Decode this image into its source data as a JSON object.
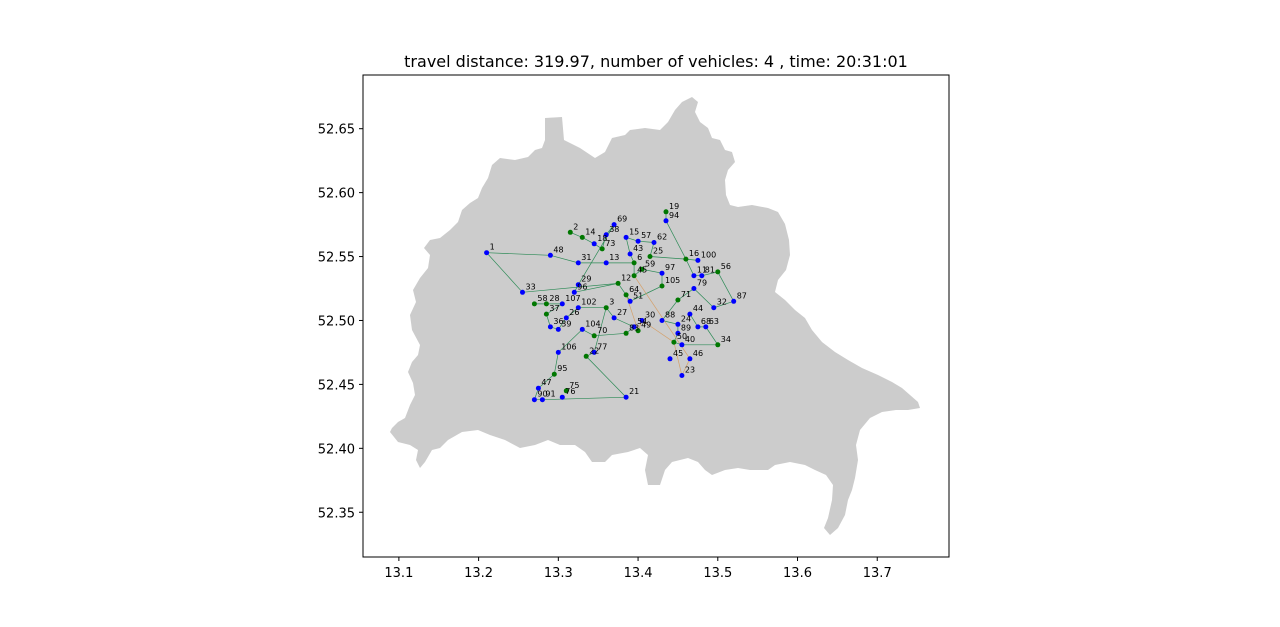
{
  "chart_data": {
    "type": "scatter",
    "title": "travel distance: 319.97, number of vehicles: 4 , time: 20:31:01",
    "xlabel": "",
    "ylabel": "",
    "xlim": [
      13.055,
      13.79
    ],
    "ylim": [
      52.315,
      52.692
    ],
    "xticks": [
      13.1,
      13.2,
      13.3,
      13.4,
      13.5,
      13.6,
      13.7
    ],
    "yticks": [
      52.35,
      52.4,
      52.45,
      52.5,
      52.55,
      52.6,
      52.65
    ],
    "xtick_labels": [
      "13.1",
      "13.2",
      "13.3",
      "13.4",
      "13.5",
      "13.6",
      "13.7"
    ],
    "ytick_labels": [
      "52.35",
      "52.40",
      "52.45",
      "52.50",
      "52.55",
      "52.60",
      "52.65"
    ],
    "grid": false,
    "background_map": "Berlin",
    "colors": {
      "map_fill": "#cccccc",
      "pickup": "#0000ff",
      "delivery": "#007700",
      "route": "#2e8b57",
      "route_alt": "#d4a06a"
    },
    "points": [
      {
        "label": "1",
        "x": 13.21,
        "y": 52.553,
        "kind": "pickup"
      },
      {
        "label": "48",
        "x": 13.29,
        "y": 52.551,
        "kind": "pickup"
      },
      {
        "label": "33",
        "x": 13.255,
        "y": 52.522,
        "kind": "pickup"
      },
      {
        "label": "58",
        "x": 13.27,
        "y": 52.513,
        "kind": "delivery"
      },
      {
        "label": "28",
        "x": 13.285,
        "y": 52.513,
        "kind": "delivery"
      },
      {
        "label": "107",
        "x": 13.305,
        "y": 52.513,
        "kind": "pickup"
      },
      {
        "label": "37",
        "x": 13.285,
        "y": 52.505,
        "kind": "delivery"
      },
      {
        "label": "36",
        "x": 13.29,
        "y": 52.495,
        "kind": "pickup"
      },
      {
        "label": "39",
        "x": 13.3,
        "y": 52.493,
        "kind": "pickup"
      },
      {
        "label": "26",
        "x": 13.31,
        "y": 52.502,
        "kind": "pickup"
      },
      {
        "label": "102",
        "x": 13.325,
        "y": 52.51,
        "kind": "pickup"
      },
      {
        "label": "104",
        "x": 13.33,
        "y": 52.493,
        "kind": "pickup"
      },
      {
        "label": "3",
        "x": 13.36,
        "y": 52.51,
        "kind": "delivery"
      },
      {
        "label": "27",
        "x": 13.37,
        "y": 52.502,
        "kind": "pickup"
      },
      {
        "label": "70",
        "x": 13.345,
        "y": 52.488,
        "kind": "delivery"
      },
      {
        "label": "83",
        "x": 13.385,
        "y": 52.49,
        "kind": "delivery"
      },
      {
        "label": "30",
        "x": 13.405,
        "y": 52.5,
        "kind": "pickup"
      },
      {
        "label": "54",
        "x": 13.395,
        "y": 52.495,
        "kind": "pickup"
      },
      {
        "label": "49",
        "x": 13.4,
        "y": 52.492,
        "kind": "delivery"
      },
      {
        "label": "96",
        "x": 13.32,
        "y": 52.522,
        "kind": "pickup"
      },
      {
        "label": "29",
        "x": 13.325,
        "y": 52.528,
        "kind": "pickup"
      },
      {
        "label": "31",
        "x": 13.325,
        "y": 52.545,
        "kind": "pickup"
      },
      {
        "label": "2",
        "x": 13.315,
        "y": 52.569,
        "kind": "delivery"
      },
      {
        "label": "14",
        "x": 13.33,
        "y": 52.565,
        "kind": "delivery"
      },
      {
        "label": "18",
        "x": 13.345,
        "y": 52.56,
        "kind": "pickup"
      },
      {
        "label": "73",
        "x": 13.355,
        "y": 52.556,
        "kind": "delivery"
      },
      {
        "label": "38",
        "x": 13.36,
        "y": 52.567,
        "kind": "pickup"
      },
      {
        "label": "69",
        "x": 13.37,
        "y": 52.575,
        "kind": "pickup"
      },
      {
        "label": "15",
        "x": 13.385,
        "y": 52.565,
        "kind": "pickup"
      },
      {
        "label": "57",
        "x": 13.4,
        "y": 52.562,
        "kind": "pickup"
      },
      {
        "label": "62",
        "x": 13.42,
        "y": 52.561,
        "kind": "pickup"
      },
      {
        "label": "43",
        "x": 13.39,
        "y": 52.552,
        "kind": "pickup"
      },
      {
        "label": "6",
        "x": 13.395,
        "y": 52.545,
        "kind": "delivery"
      },
      {
        "label": "13",
        "x": 13.36,
        "y": 52.545,
        "kind": "pickup"
      },
      {
        "label": "25",
        "x": 13.415,
        "y": 52.55,
        "kind": "delivery"
      },
      {
        "label": "59",
        "x": 13.405,
        "y": 52.54,
        "kind": "delivery"
      },
      {
        "label": "45",
        "x": 13.395,
        "y": 52.535,
        "kind": "delivery"
      },
      {
        "label": "97",
        "x": 13.43,
        "y": 52.537,
        "kind": "pickup"
      },
      {
        "label": "105",
        "x": 13.43,
        "y": 52.527,
        "kind": "delivery"
      },
      {
        "label": "12",
        "x": 13.375,
        "y": 52.529,
        "kind": "delivery"
      },
      {
        "label": "64",
        "x": 13.385,
        "y": 52.52,
        "kind": "delivery"
      },
      {
        "label": "51",
        "x": 13.39,
        "y": 52.515,
        "kind": "pickup"
      },
      {
        "label": "88",
        "x": 13.43,
        "y": 52.5,
        "kind": "pickup"
      },
      {
        "label": "71",
        "x": 13.45,
        "y": 52.516,
        "kind": "delivery"
      },
      {
        "label": "19",
        "x": 13.435,
        "y": 52.585,
        "kind": "delivery"
      },
      {
        "label": "94",
        "x": 13.435,
        "y": 52.578,
        "kind": "pickup"
      },
      {
        "label": "16",
        "x": 13.46,
        "y": 52.548,
        "kind": "delivery"
      },
      {
        "label": "100",
        "x": 13.475,
        "y": 52.547,
        "kind": "pickup"
      },
      {
        "label": "11",
        "x": 13.47,
        "y": 52.535,
        "kind": "pickup"
      },
      {
        "label": "81",
        "x": 13.48,
        "y": 52.535,
        "kind": "pickup"
      },
      {
        "label": "56",
        "x": 13.5,
        "y": 52.538,
        "kind": "delivery"
      },
      {
        "label": "79",
        "x": 13.47,
        "y": 52.525,
        "kind": "pickup"
      },
      {
        "label": "32",
        "x": 13.495,
        "y": 52.51,
        "kind": "pickup"
      },
      {
        "label": "87",
        "x": 13.52,
        "y": 52.515,
        "kind": "pickup"
      },
      {
        "label": "44",
        "x": 13.465,
        "y": 52.505,
        "kind": "pickup"
      },
      {
        "label": "24",
        "x": 13.45,
        "y": 52.497,
        "kind": "pickup"
      },
      {
        "label": "89",
        "x": 13.45,
        "y": 52.49,
        "kind": "pickup"
      },
      {
        "label": "68",
        "x": 13.475,
        "y": 52.495,
        "kind": "pickup"
      },
      {
        "label": "63",
        "x": 13.485,
        "y": 52.495,
        "kind": "pickup"
      },
      {
        "label": "50",
        "x": 13.445,
        "y": 52.483,
        "kind": "delivery"
      },
      {
        "label": "40",
        "x": 13.455,
        "y": 52.481,
        "kind": "pickup"
      },
      {
        "label": "34",
        "x": 13.5,
        "y": 52.481,
        "kind": "delivery"
      },
      {
        "label": "46",
        "x": 13.465,
        "y": 52.47,
        "kind": "pickup"
      },
      {
        "label": "45",
        "x": 13.44,
        "y": 52.47,
        "kind": "pickup"
      },
      {
        "label": "23",
        "x": 13.455,
        "y": 52.457,
        "kind": "pickup"
      },
      {
        "label": "106",
        "x": 13.3,
        "y": 52.475,
        "kind": "pickup"
      },
      {
        "label": "22",
        "x": 13.335,
        "y": 52.472,
        "kind": "delivery"
      },
      {
        "label": "77",
        "x": 13.345,
        "y": 52.475,
        "kind": "pickup"
      },
      {
        "label": "95",
        "x": 13.295,
        "y": 52.458,
        "kind": "delivery"
      },
      {
        "label": "47",
        "x": 13.275,
        "y": 52.447,
        "kind": "pickup"
      },
      {
        "label": "75",
        "x": 13.31,
        "y": 52.445,
        "kind": "delivery"
      },
      {
        "label": "76",
        "x": 13.305,
        "y": 52.44,
        "kind": "pickup"
      },
      {
        "label": "90",
        "x": 13.27,
        "y": 52.438,
        "kind": "pickup"
      },
      {
        "label": "91",
        "x": 13.28,
        "y": 52.438,
        "kind": "pickup"
      },
      {
        "label": "21",
        "x": 13.385,
        "y": 52.44,
        "kind": "pickup"
      }
    ],
    "routes": [
      {
        "name": "",
        "color": "#2e8b57",
        "stops": [
          "1",
          "48",
          "31",
          "13",
          "6",
          "43",
          "15",
          "57",
          "62",
          "25",
          "16",
          "100"
        ]
      },
      {
        "name": "",
        "color": "#2e8b57",
        "stops": [
          "1",
          "33",
          "12",
          "64",
          "51",
          "105",
          "97",
          "59",
          "45",
          "6"
        ]
      },
      {
        "name": "",
        "color": "#2e8b57",
        "stops": [
          "58",
          "28",
          "107",
          "37",
          "36",
          "39",
          "26",
          "102",
          "3",
          "27",
          "54",
          "83",
          "70",
          "104",
          "106",
          "95",
          "47",
          "90",
          "91",
          "21",
          "22",
          "77",
          "3"
        ]
      },
      {
        "name": "",
        "color": "#2e8b57",
        "stops": [
          "2",
          "14",
          "18",
          "73",
          "38",
          "69",
          "29",
          "96",
          "12"
        ]
      },
      {
        "name": "",
        "color": "#2e8b57",
        "stops": [
          "19",
          "94",
          "16",
          "11",
          "81",
          "56",
          "87",
          "32",
          "79",
          "71",
          "88",
          "24",
          "89",
          "50",
          "40",
          "34",
          "63",
          "68",
          "44"
        ]
      },
      {
        "name": "",
        "color": "#d4a06a",
        "stops": [
          "45",
          "46",
          "23",
          "50",
          "30",
          "49",
          "64"
        ]
      }
    ]
  }
}
